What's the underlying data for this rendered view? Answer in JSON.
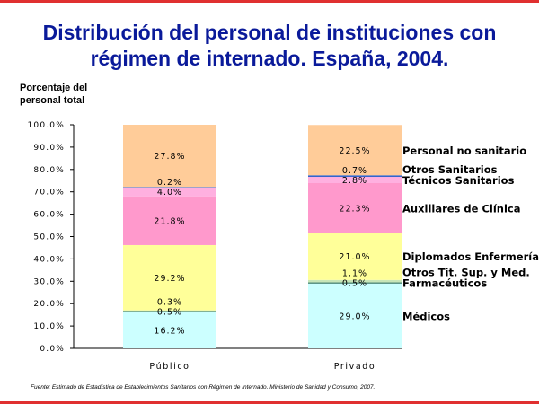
{
  "chart_data": {
    "type": "bar",
    "stacked": true,
    "title": "Distribución del personal de instituciones con régimen de internado. España, 2004.",
    "ylabel": "Porcentaje del personal total",
    "xlabel": "",
    "ylim": [
      0,
      100
    ],
    "y_ticks": [
      "0.0%",
      "10.0%",
      "20.0%",
      "30.0%",
      "40.0%",
      "50.0%",
      "60.0%",
      "70.0%",
      "80.0%",
      "90.0%",
      "100.0%"
    ],
    "categories": [
      "Público",
      "Privado"
    ],
    "series": [
      {
        "name": "Médicos",
        "color": "#ccffff",
        "values": [
          16.2,
          29.0
        ],
        "labels": [
          "16.2%",
          "29.0%"
        ]
      },
      {
        "name": "Farmacéuticos",
        "color": "#3a7a6a",
        "values": [
          0.5,
          0.5
        ],
        "labels": [
          "0.5%",
          "0.5%"
        ]
      },
      {
        "name": "Otros Tit. Sup. y Med.",
        "color": "#c8e6b8",
        "values": [
          0.3,
          1.1
        ],
        "labels": [
          "0.3%",
          "1.1%"
        ]
      },
      {
        "name": "Diplomados Enfermería",
        "color": "#ffff99",
        "values": [
          29.2,
          21.0
        ],
        "labels": [
          "29.2%",
          "21.0%"
        ]
      },
      {
        "name": "Auxiliares de Clínica",
        "color": "#ff99cc",
        "values": [
          21.8,
          22.3
        ],
        "labels": [
          "21.8%",
          "22.3%"
        ]
      },
      {
        "name": "Técnicos Sanitarios",
        "color": "#ffb0e0",
        "values": [
          4.0,
          2.8
        ],
        "labels": [
          "4.0%",
          "2.8%"
        ]
      },
      {
        "name": "Otros Sanitarios",
        "color": "#3366cc",
        "values": [
          0.2,
          0.7
        ],
        "labels": [
          "0.2%",
          "0.7%"
        ]
      },
      {
        "name": "Personal no sanitario",
        "color": "#ffcc99",
        "values": [
          27.8,
          22.5
        ],
        "labels": [
          "27.8%",
          "22.5%"
        ]
      }
    ],
    "legend": "right",
    "source": "Fuente: Estimado de Estadística de Establecimientos Sanitarios con Régimen de Internado. Ministerio de Sanidad y Consumo, 2007."
  }
}
